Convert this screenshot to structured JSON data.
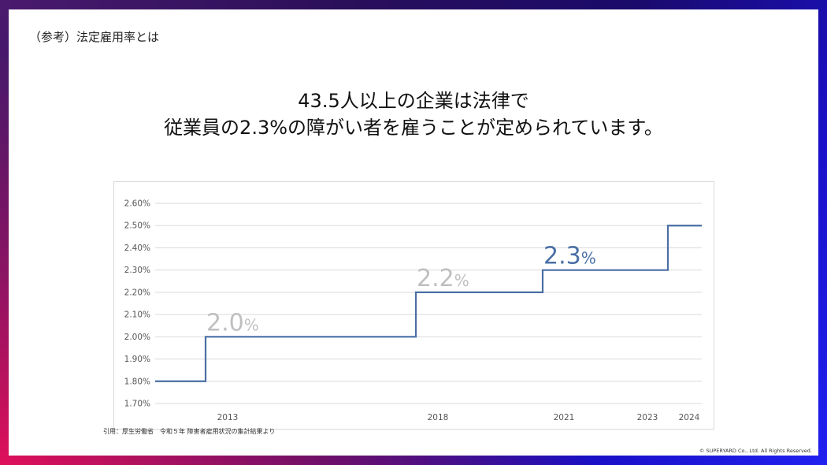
{
  "slide": {
    "heading": "（参考）法定雇用率とは",
    "headline_line1": "43.5人以上の企業は法律で",
    "headline_line2": "従業員の2.3%の障がい者を雇うことが定められています。",
    "source_note": "引用：厚生労働省　令和５年 障害者雇用状況の集計結果より",
    "copyright": "© SUPERYARD Co., Ltd. All Rights Reserved."
  },
  "colors": {
    "line": "#4a6fa5",
    "grid": "#d9d9d9",
    "annotation_past": "#bfbfbf",
    "annotation_current": "#4a6fa5",
    "tick_text": "#555555"
  },
  "chart_data": {
    "type": "line",
    "step": true,
    "title": "",
    "xlabel": "",
    "ylabel": "",
    "ylim": [
      0.017,
      0.026
    ],
    "y_ticks": [
      0.017,
      0.018,
      0.019,
      0.02,
      0.021,
      0.022,
      0.023,
      0.024,
      0.025,
      0.026
    ],
    "y_tick_labels": [
      "1.70%",
      "1.80%",
      "1.90%",
      "2.00%",
      "2.10%",
      "2.20%",
      "2.30%",
      "2.40%",
      "2.50%",
      "2.60%"
    ],
    "x_tick_labels": [
      "2013",
      "2018",
      "2021",
      "2023",
      "2024"
    ],
    "grid": true,
    "series": [
      {
        "steps": [
          {
            "from": "start",
            "to": "2013",
            "value": 0.018
          },
          {
            "from": "2013",
            "to": "2018",
            "value": 0.02
          },
          {
            "from": "2018",
            "to": "2021",
            "value": 0.022
          },
          {
            "from": "2021",
            "to": "2024",
            "value": 0.023
          },
          {
            "from": "2024",
            "to": "end",
            "value": 0.025
          }
        ]
      }
    ],
    "annotations": [
      {
        "at": "2013",
        "number": "2.0",
        "unit": "%",
        "emphasis": false
      },
      {
        "at": "2018",
        "number": "2.2",
        "unit": "%",
        "emphasis": false
      },
      {
        "at": "2021",
        "number": "2.3",
        "unit": "%",
        "emphasis": true
      }
    ]
  }
}
